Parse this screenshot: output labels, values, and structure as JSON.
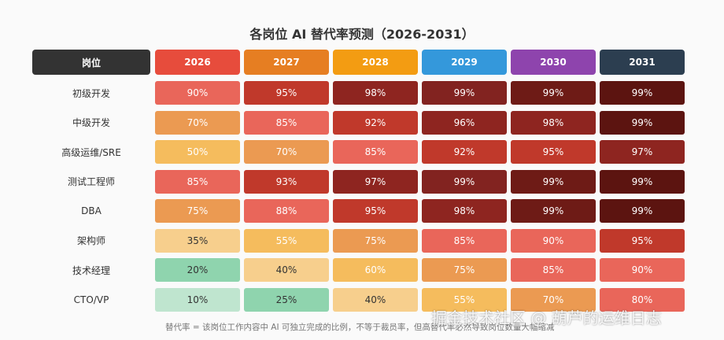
{
  "chart_data": {
    "type": "heatmap",
    "title": "各岗位 AI 替代率预测（2026-2031）",
    "corner_label": "岗位",
    "columns": [
      "2026",
      "2027",
      "2028",
      "2029",
      "2030",
      "2031"
    ],
    "column_colors": [
      "#e74c3c",
      "#e67e22",
      "#f39c12",
      "#3498db",
      "#8e44ad",
      "#2c3e50"
    ],
    "rows": [
      "初级开发",
      "中级开发",
      "高级运维/SRE",
      "测试工程师",
      "DBA",
      "架构师",
      "技术经理",
      "CTO/VP"
    ],
    "unit": "%",
    "values": [
      [
        90,
        95,
        98,
        99,
        99,
        99
      ],
      [
        70,
        85,
        92,
        96,
        98,
        99
      ],
      [
        50,
        70,
        85,
        92,
        95,
        97
      ],
      [
        85,
        93,
        97,
        99,
        99,
        99
      ],
      [
        75,
        88,
        95,
        98,
        99,
        99
      ],
      [
        35,
        55,
        75,
        85,
        90,
        95
      ],
      [
        20,
        40,
        60,
        75,
        85,
        90
      ],
      [
        10,
        25,
        40,
        55,
        70,
        80
      ]
    ]
  },
  "footnote": "替代率 = 该岗位工作内容中 AI 可独立完成的比例，不等于裁员率，但高替代率必然导致岗位数量大幅缩减",
  "watermark": "掘金技术社区 @ 葫芦的运维日志"
}
